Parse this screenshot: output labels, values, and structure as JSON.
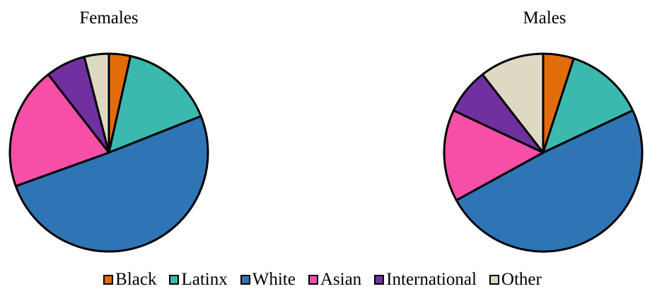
{
  "chart_data": [
    {
      "type": "pie",
      "title": "Females",
      "categories": [
        "Black",
        "Latinx",
        "White",
        "Asian",
        "International",
        "Other"
      ],
      "values": [
        3.5,
        15.5,
        50.5,
        20.0,
        6.5,
        4.0
      ]
    },
    {
      "type": "pie",
      "title": "Males",
      "categories": [
        "Black",
        "Latinx",
        "White",
        "Asian",
        "International",
        "Other"
      ],
      "values": [
        5.0,
        13.0,
        49.0,
        15.0,
        7.5,
        10.5
      ]
    }
  ],
  "legend": {
    "placement": "bottom",
    "items": [
      {
        "label": "Black",
        "color": "#E36C0A"
      },
      {
        "label": "Latinx",
        "color": "#3CB9AF"
      },
      {
        "label": "White",
        "color": "#2E75B6"
      },
      {
        "label": "Asian",
        "color": "#F74FA8"
      },
      {
        "label": "International",
        "color": "#7030A0"
      },
      {
        "label": "Other",
        "color": "#DDD9C3"
      }
    ]
  }
}
